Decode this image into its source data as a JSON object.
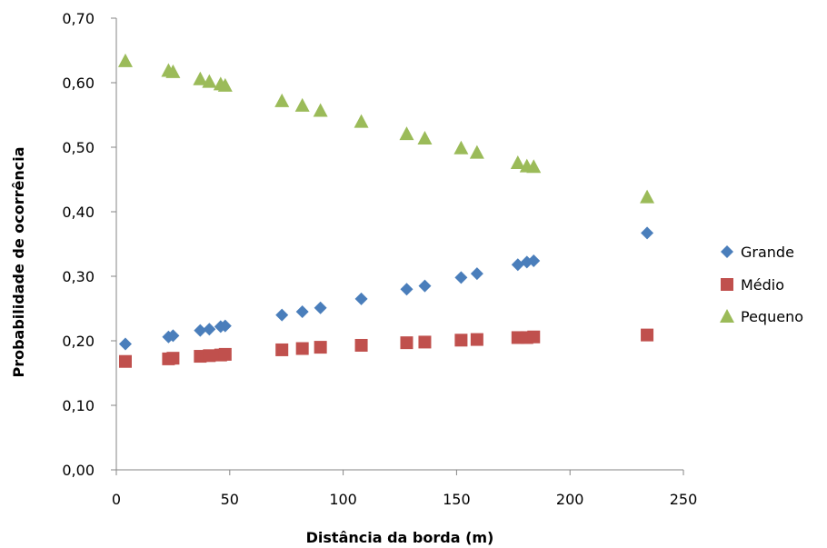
{
  "chart_data": {
    "type": "scatter",
    "title": "",
    "xlabel": "Distância da borda (m)",
    "ylabel": "Probabilidade de ocorrência",
    "xlim": [
      0,
      250
    ],
    "ylim": [
      0,
      0.7
    ],
    "xticks": [
      0,
      50,
      100,
      150,
      200,
      250
    ],
    "xtick_labels": [
      "0",
      "50",
      "100",
      "150",
      "200",
      "250"
    ],
    "yticks": [
      0,
      0.1,
      0.2,
      0.3,
      0.4,
      0.5,
      0.6,
      0.7
    ],
    "ytick_labels": [
      "0,00",
      "0,10",
      "0,20",
      "0,30",
      "0,40",
      "0,50",
      "0,60",
      "0,70"
    ],
    "grid": false,
    "legend_position": "right",
    "x": [
      4,
      23,
      25,
      37,
      41,
      46,
      48,
      73,
      82,
      90,
      108,
      128,
      136,
      152,
      159,
      177,
      181,
      184,
      234
    ],
    "series": [
      {
        "name": "Grande",
        "marker": "diamond",
        "color": "#4A7EBB",
        "values": [
          0.195,
          0.206,
          0.208,
          0.216,
          0.218,
          0.222,
          0.223,
          0.24,
          0.245,
          0.251,
          0.265,
          0.28,
          0.285,
          0.298,
          0.304,
          0.318,
          0.322,
          0.324,
          0.367
        ]
      },
      {
        "name": "Médio",
        "marker": "square",
        "color": "#C0504D",
        "values": [
          0.168,
          0.172,
          0.173,
          0.176,
          0.177,
          0.178,
          0.179,
          0.186,
          0.188,
          0.19,
          0.193,
          0.197,
          0.198,
          0.201,
          0.202,
          0.205,
          0.205,
          0.206,
          0.209
        ]
      },
      {
        "name": "Pequeno",
        "marker": "triangle",
        "color": "#9BBB59",
        "values": [
          0.634,
          0.619,
          0.617,
          0.606,
          0.602,
          0.598,
          0.596,
          0.572,
          0.565,
          0.557,
          0.54,
          0.521,
          0.514,
          0.499,
          0.492,
          0.476,
          0.471,
          0.47,
          0.423
        ]
      }
    ]
  }
}
